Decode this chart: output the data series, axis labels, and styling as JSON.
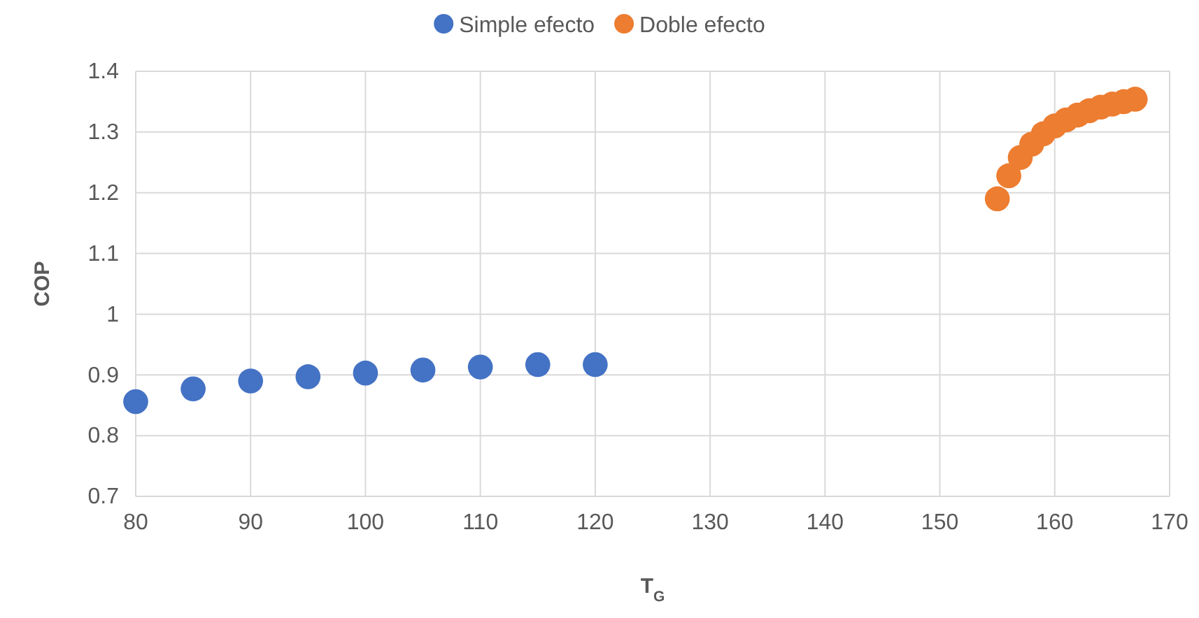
{
  "chart_data": {
    "type": "scatter",
    "xlabel": "T$_{G}$",
    "ylabel": "COP",
    "xlim": [
      80,
      170
    ],
    "xticks": [
      80,
      90,
      100,
      110,
      120,
      130,
      140,
      150,
      160,
      170
    ],
    "ylim": [
      0.7,
      1.4
    ],
    "yticks": [
      0.7,
      0.8,
      0.9,
      1,
      1.1,
      1.2,
      1.3,
      1.4
    ],
    "grid": true,
    "legend": "top",
    "marker": "circle",
    "series": [
      {
        "name": "Simple efecto",
        "color": "#4472c4",
        "x": [
          80,
          85,
          90,
          95,
          100,
          105,
          110,
          115,
          120
        ],
        "values": [
          0.856,
          0.877,
          0.89,
          0.897,
          0.903,
          0.908,
          0.913,
          0.917,
          0.917
        ]
      },
      {
        "name": "Doble efecto",
        "color": "#ed7d31",
        "x": [
          155,
          156,
          157,
          158,
          159,
          160,
          161,
          162,
          163,
          164,
          165,
          166,
          167
        ],
        "values": [
          1.19,
          1.228,
          1.258,
          1.28,
          1.297,
          1.31,
          1.32,
          1.328,
          1.335,
          1.341,
          1.346,
          1.35,
          1.354
        ]
      }
    ]
  }
}
